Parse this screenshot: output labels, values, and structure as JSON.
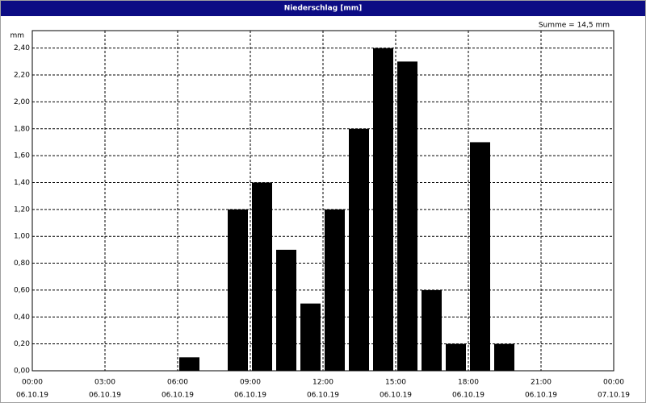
{
  "chart_data": {
    "type": "bar",
    "title": "Niederschlag [mm]",
    "y_label": "mm",
    "annotation": "Summe = 14,5 mm",
    "color": "#000000",
    "grid": true,
    "x": [
      "06.10.19 06:00",
      "06.10.19 08:00",
      "06.10.19 09:00",
      "06.10.19 10:00",
      "06.10.19 11:00",
      "06.10.19 12:00",
      "06.10.19 13:00",
      "06.10.19 14:00",
      "06.10.19 15:00",
      "06.10.19 16:00",
      "06.10.19 17:00",
      "06.10.19 18:00",
      "06.10.19 19:00"
    ],
    "values": [
      0.1,
      1.2,
      1.4,
      0.9,
      0.5,
      1.2,
      1.8,
      2.4,
      2.3,
      0.6,
      0.2,
      1.7,
      0.2
    ],
    "xlim": [
      "06.10.19 00:00",
      "07.10.19 00:00"
    ],
    "xticks": [
      {
        "value": "06.10.19 00:00",
        "label": [
          "00:00",
          "06.10.19"
        ]
      },
      {
        "value": "06.10.19 03:00",
        "label": [
          "03:00",
          "06.10.19"
        ]
      },
      {
        "value": "06.10.19 06:00",
        "label": [
          "06:00",
          "06.10.19"
        ]
      },
      {
        "value": "06.10.19 09:00",
        "label": [
          "09:00",
          "06.10.19"
        ]
      },
      {
        "value": "06.10.19 12:00",
        "label": [
          "12:00",
          "06.10.19"
        ]
      },
      {
        "value": "06.10.19 15:00",
        "label": [
          "15:00",
          "06.10.19"
        ]
      },
      {
        "value": "06.10.19 18:00",
        "label": [
          "18:00",
          "06.10.19"
        ]
      },
      {
        "value": "06.10.19 21:00",
        "label": [
          "21:00",
          "06.10.19"
        ]
      },
      {
        "value": "07.10.19 00:00",
        "label": [
          "00:00",
          "07.10.19"
        ]
      }
    ],
    "ylim": [
      0,
      2.53
    ],
    "yticks": [
      {
        "value": 0,
        "label": "0,00"
      },
      {
        "value": 0.2,
        "label": "0,20"
      },
      {
        "value": 0.4,
        "label": "0,40"
      },
      {
        "value": 0.6,
        "label": "0,60"
      },
      {
        "value": 0.8,
        "label": "0,80"
      },
      {
        "value": 1.0,
        "label": "1,00"
      },
      {
        "value": 1.2,
        "label": "1,20"
      },
      {
        "value": 1.4,
        "label": "1,40"
      },
      {
        "value": 1.6,
        "label": "1,60"
      },
      {
        "value": 1.8,
        "label": "1,80"
      },
      {
        "value": 2.0,
        "label": "2,00"
      },
      {
        "value": 2.2,
        "label": "2,20"
      },
      {
        "value": 2.4,
        "label": "2,40"
      }
    ]
  }
}
